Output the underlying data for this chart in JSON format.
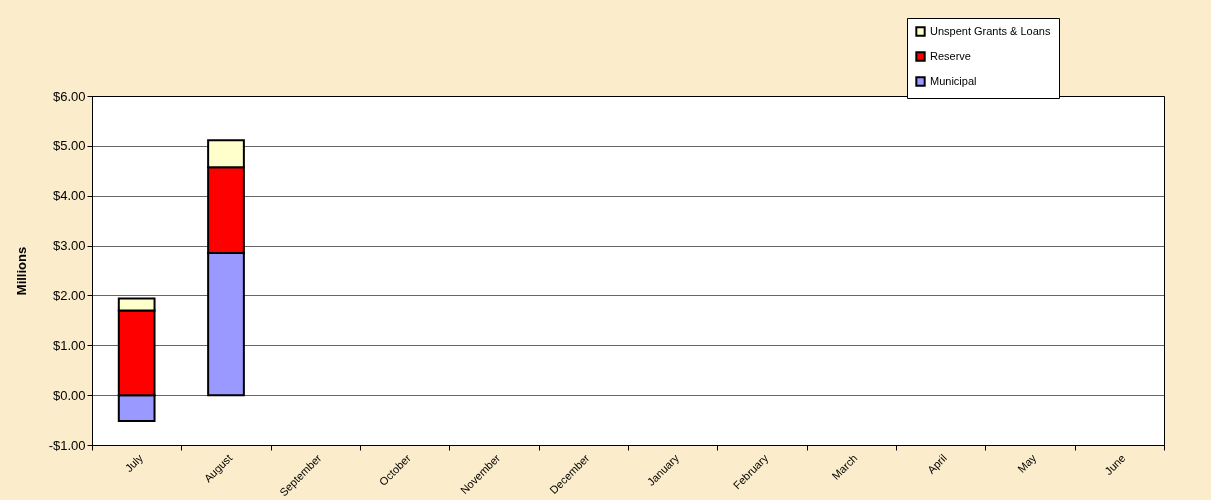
{
  "chart_data": {
    "type": "bar",
    "stacked": true,
    "ylabel": "Millions",
    "categories": [
      "July",
      "August",
      "September",
      "October",
      "November",
      "December",
      "January",
      "February",
      "March",
      "April",
      "May",
      "June"
    ],
    "series": [
      {
        "name": "Municipal",
        "color": "#9999ff",
        "values": [
          -0.52,
          2.85,
          null,
          null,
          null,
          null,
          null,
          null,
          null,
          null,
          null,
          null
        ]
      },
      {
        "name": "Reserve",
        "color": "#ff0000",
        "values": [
          1.7,
          1.72,
          null,
          null,
          null,
          null,
          null,
          null,
          null,
          null,
          null,
          null
        ]
      },
      {
        "name": "Unspent Grants & Loans",
        "color": "#ffffcc",
        "values": [
          0.24,
          0.54,
          null,
          null,
          null,
          null,
          null,
          null,
          null,
          null,
          null,
          null
        ]
      }
    ],
    "ylim": [
      -1,
      6
    ],
    "yticks": [
      {
        "value": -1,
        "label": "-$1.00"
      },
      {
        "value": 0,
        "label": "$0.00"
      },
      {
        "value": 1,
        "label": "$1.00"
      },
      {
        "value": 2,
        "label": "$2.00"
      },
      {
        "value": 3,
        "label": "$3.00"
      },
      {
        "value": 4,
        "label": "$4.00"
      },
      {
        "value": 5,
        "label": "$5.00"
      },
      {
        "value": 6,
        "label": "$6.00"
      }
    ],
    "grid": "y",
    "legend": "top right"
  }
}
